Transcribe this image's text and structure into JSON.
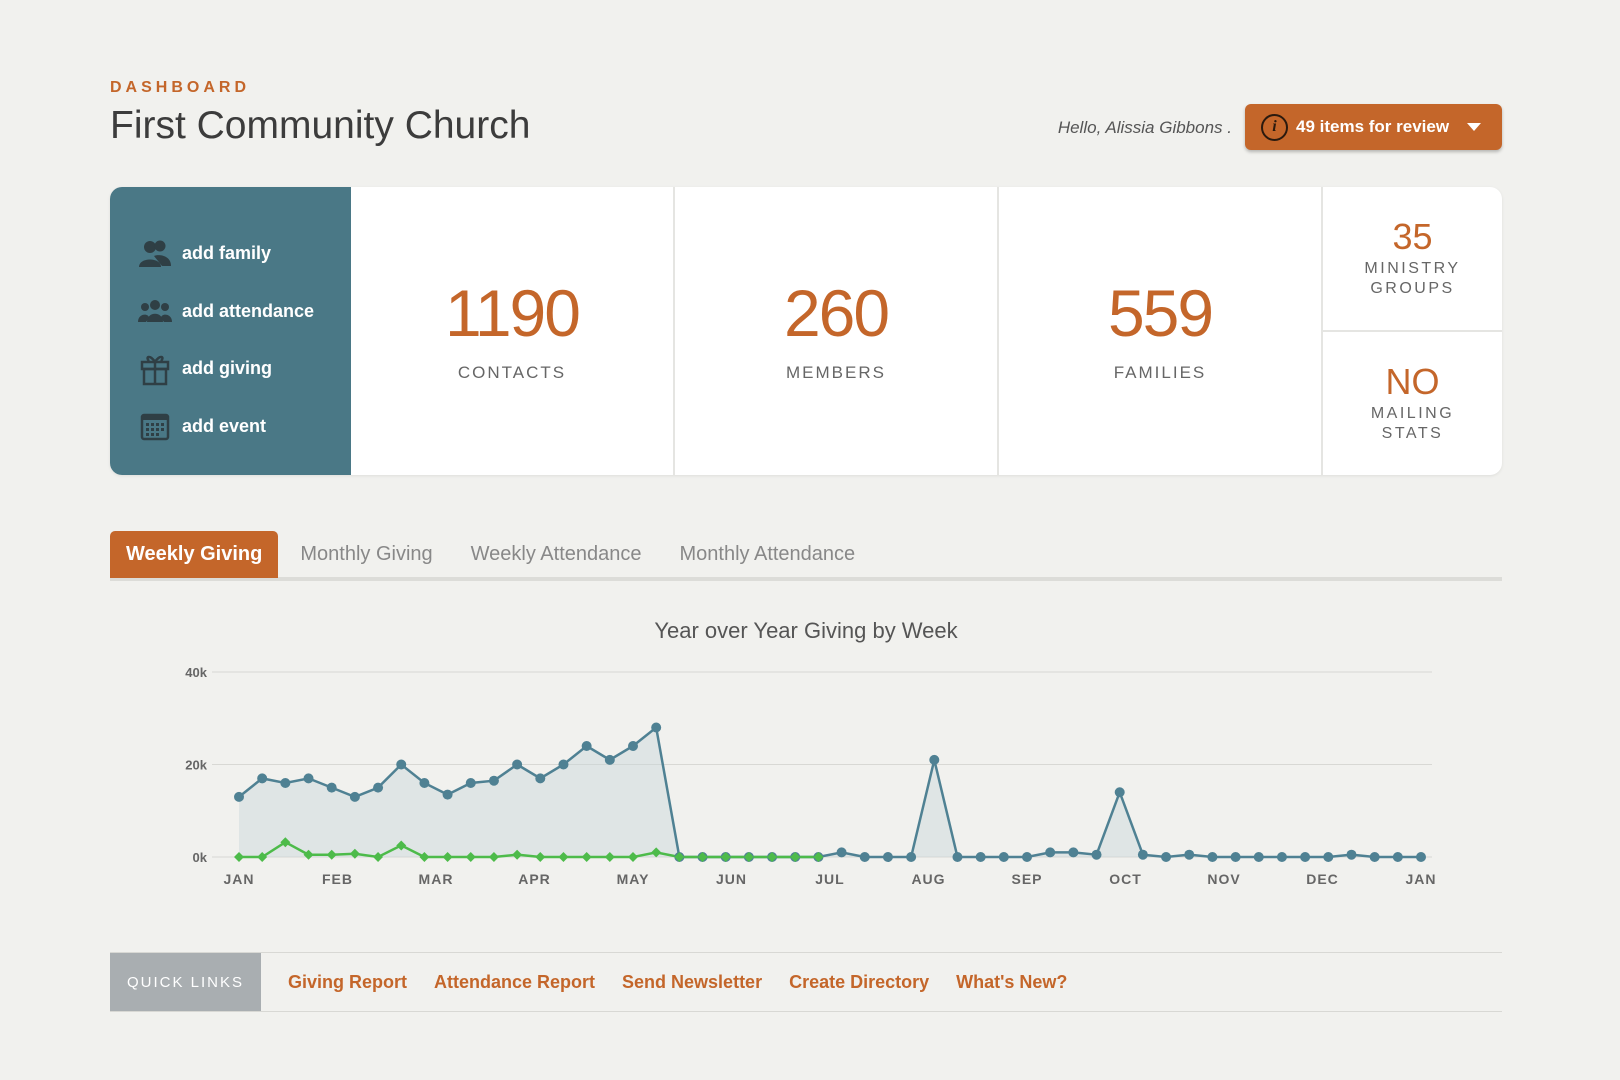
{
  "header": {
    "kicker": "DASHBOARD",
    "title": "First Community Church",
    "greeting": "Hello, Alissia Gibbons .",
    "review_button": "49 items for review",
    "review_icon": "info-icon"
  },
  "actions": [
    {
      "label": "add family",
      "icon": "family-icon"
    },
    {
      "label": "add attendance",
      "icon": "attendance-icon"
    },
    {
      "label": "add giving",
      "icon": "gift-icon"
    },
    {
      "label": "add event",
      "icon": "calendar-icon"
    }
  ],
  "stats": {
    "contacts": {
      "value": "1190",
      "label": "CONTACTS"
    },
    "members": {
      "value": "260",
      "label": "MEMBERS"
    },
    "families": {
      "value": "559",
      "label": "FAMILIES"
    },
    "ministry": {
      "value": "35",
      "label": "MINISTRY GROUPS"
    },
    "mailing": {
      "value": "NO",
      "label": "MAILING STATS"
    }
  },
  "tabs": [
    {
      "label": "Weekly Giving",
      "active": true
    },
    {
      "label": "Monthly Giving",
      "active": false
    },
    {
      "label": "Weekly Attendance",
      "active": false
    },
    {
      "label": "Monthly Attendance",
      "active": false
    }
  ],
  "chart_data": {
    "type": "line",
    "title": "Year over Year Giving by Week",
    "ylim": [
      0,
      40000
    ],
    "y_ticks": [
      "0k",
      "20k",
      "40k"
    ],
    "x_ticks": [
      "JAN",
      "FEB",
      "MAR",
      "APR",
      "MAY",
      "JUN",
      "JUL",
      "AUG",
      "SEP",
      "OCT",
      "NOV",
      "DEC",
      "JAN"
    ],
    "grid": true,
    "colors": {
      "series_1": "#4f8193",
      "series_2": "#4dbb4a"
    },
    "series": [
      {
        "values": [
          13000,
          17000,
          16000,
          17000,
          15000,
          13000,
          15000,
          20000,
          16000,
          13500,
          16000,
          16500,
          20000,
          17000,
          20000,
          24000,
          21000,
          24000,
          28000,
          0,
          0,
          0,
          0,
          0,
          0,
          0,
          1000,
          0,
          0,
          0,
          21000,
          0,
          0,
          0,
          0,
          1000,
          1000,
          500,
          14000,
          500,
          0,
          500,
          0,
          0,
          0,
          0,
          0,
          0,
          500,
          0,
          0,
          0
        ],
        "filled": true
      },
      {
        "values": [
          0,
          0,
          3200,
          500,
          500,
          700,
          0,
          2500,
          0,
          0,
          0,
          0,
          500,
          0,
          0,
          0,
          0,
          0,
          1000,
          0,
          0,
          0,
          0,
          0,
          0,
          0
        ],
        "filled": false
      }
    ]
  },
  "quick_links": {
    "label": "QUICK LINKS",
    "links": [
      "Giving Report",
      "Attendance Report",
      "Send Newsletter",
      "Create Directory",
      "What's New?"
    ]
  }
}
